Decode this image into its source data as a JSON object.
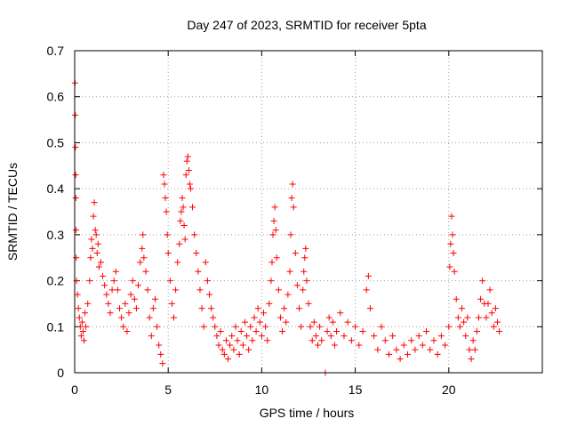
{
  "chart_data": {
    "type": "scatter",
    "title": "Day 247 of 2023, SRMTID for receiver 5pta",
    "xlabel": "GPS time / hours",
    "ylabel": "SRMTID / TECUs",
    "xlim": [
      0,
      25
    ],
    "ylim": [
      0,
      0.7
    ],
    "xticks": [
      0,
      5,
      10,
      15,
      20
    ],
    "yticks": [
      0,
      0.1,
      0.2,
      0.3,
      0.4,
      0.5,
      0.6,
      0.7
    ],
    "xtick_labels": [
      "0",
      "5",
      "10",
      "15",
      "20"
    ],
    "ytick_labels": [
      "0",
      "0.1",
      "0.2",
      "0.3",
      "0.4",
      "0.5",
      "0.6",
      "0.7"
    ],
    "grid": true,
    "marker": "+",
    "color": "#ff0000",
    "series": [
      {
        "name": "5pta",
        "points": [
          [
            0.02,
            0.63
          ],
          [
            0.03,
            0.56
          ],
          [
            0.04,
            0.49
          ],
          [
            0.05,
            0.43
          ],
          [
            0.06,
            0.38
          ],
          [
            0.07,
            0.31
          ],
          [
            0.08,
            0.25
          ],
          [
            0.1,
            0.2
          ],
          [
            0.15,
            0.17
          ],
          [
            0.2,
            0.14
          ],
          [
            0.25,
            0.12
          ],
          [
            0.3,
            0.1
          ],
          [
            0.35,
            0.08
          ],
          [
            0.4,
            0.11
          ],
          [
            0.45,
            0.09
          ],
          [
            0.5,
            0.07
          ],
          [
            0.55,
            0.13
          ],
          [
            0.6,
            0.1
          ],
          [
            0.7,
            0.15
          ],
          [
            0.8,
            0.2
          ],
          [
            0.85,
            0.25
          ],
          [
            0.9,
            0.29
          ],
          [
            0.95,
            0.27
          ],
          [
            1.0,
            0.34
          ],
          [
            1.05,
            0.37
          ],
          [
            1.1,
            0.31
          ],
          [
            1.15,
            0.3
          ],
          [
            1.2,
            0.26
          ],
          [
            1.25,
            0.28
          ],
          [
            1.3,
            0.23
          ],
          [
            1.4,
            0.24
          ],
          [
            1.5,
            0.21
          ],
          [
            1.6,
            0.19
          ],
          [
            1.7,
            0.17
          ],
          [
            1.8,
            0.15
          ],
          [
            1.9,
            0.13
          ],
          [
            2.0,
            0.18
          ],
          [
            2.1,
            0.2
          ],
          [
            2.2,
            0.22
          ],
          [
            2.3,
            0.18
          ],
          [
            2.4,
            0.14
          ],
          [
            2.5,
            0.12
          ],
          [
            2.6,
            0.1
          ],
          [
            2.7,
            0.15
          ],
          [
            2.8,
            0.09
          ],
          [
            2.9,
            0.13
          ],
          [
            3.0,
            0.17
          ],
          [
            3.1,
            0.2
          ],
          [
            3.2,
            0.16
          ],
          [
            3.3,
            0.14
          ],
          [
            3.4,
            0.19
          ],
          [
            3.5,
            0.24
          ],
          [
            3.6,
            0.27
          ],
          [
            3.65,
            0.3
          ],
          [
            3.7,
            0.25
          ],
          [
            3.8,
            0.22
          ],
          [
            3.9,
            0.18
          ],
          [
            4.0,
            0.12
          ],
          [
            4.1,
            0.08
          ],
          [
            4.2,
            0.14
          ],
          [
            4.3,
            0.16
          ],
          [
            4.4,
            0.1
          ],
          [
            4.5,
            0.06
          ],
          [
            4.6,
            0.04
          ],
          [
            4.7,
            0.02
          ],
          [
            4.75,
            0.43
          ],
          [
            4.8,
            0.41
          ],
          [
            4.85,
            0.38
          ],
          [
            4.9,
            0.35
          ],
          [
            4.95,
            0.3
          ],
          [
            5.0,
            0.26
          ],
          [
            5.1,
            0.2
          ],
          [
            5.2,
            0.15
          ],
          [
            5.3,
            0.12
          ],
          [
            5.4,
            0.18
          ],
          [
            5.5,
            0.24
          ],
          [
            5.6,
            0.28
          ],
          [
            5.65,
            0.33
          ],
          [
            5.7,
            0.35
          ],
          [
            5.75,
            0.38
          ],
          [
            5.8,
            0.36
          ],
          [
            5.85,
            0.32
          ],
          [
            5.9,
            0.29
          ],
          [
            5.95,
            0.43
          ],
          [
            6.0,
            0.46
          ],
          [
            6.05,
            0.47
          ],
          [
            6.1,
            0.44
          ],
          [
            6.15,
            0.41
          ],
          [
            6.2,
            0.4
          ],
          [
            6.3,
            0.36
          ],
          [
            6.4,
            0.3
          ],
          [
            6.5,
            0.26
          ],
          [
            6.6,
            0.22
          ],
          [
            6.7,
            0.18
          ],
          [
            6.8,
            0.14
          ],
          [
            6.9,
            0.1
          ],
          [
            7.0,
            0.24
          ],
          [
            7.1,
            0.2
          ],
          [
            7.2,
            0.17
          ],
          [
            7.3,
            0.14
          ],
          [
            7.4,
            0.12
          ],
          [
            7.5,
            0.1
          ],
          [
            7.6,
            0.08
          ],
          [
            7.7,
            0.06
          ],
          [
            7.8,
            0.09
          ],
          [
            7.9,
            0.05
          ],
          [
            8.0,
            0.04
          ],
          [
            8.1,
            0.07
          ],
          [
            8.2,
            0.03
          ],
          [
            8.3,
            0.06
          ],
          [
            8.4,
            0.08
          ],
          [
            8.5,
            0.05
          ],
          [
            8.6,
            0.1
          ],
          [
            8.7,
            0.07
          ],
          [
            8.8,
            0.04
          ],
          [
            8.9,
            0.09
          ],
          [
            9.0,
            0.06
          ],
          [
            9.1,
            0.11
          ],
          [
            9.2,
            0.08
          ],
          [
            9.3,
            0.05
          ],
          [
            9.4,
            0.1
          ],
          [
            9.5,
            0.07
          ],
          [
            9.6,
            0.12
          ],
          [
            9.7,
            0.09
          ],
          [
            9.8,
            0.14
          ],
          [
            9.9,
            0.11
          ],
          [
            10.0,
            0.08
          ],
          [
            10.1,
            0.13
          ],
          [
            10.2,
            0.1
          ],
          [
            10.3,
            0.07
          ],
          [
            10.4,
            0.15
          ],
          [
            10.5,
            0.2
          ],
          [
            10.55,
            0.24
          ],
          [
            10.6,
            0.3
          ],
          [
            10.65,
            0.33
          ],
          [
            10.7,
            0.36
          ],
          [
            10.75,
            0.31
          ],
          [
            10.8,
            0.25
          ],
          [
            10.9,
            0.18
          ],
          [
            11.0,
            0.12
          ],
          [
            11.1,
            0.09
          ],
          [
            11.2,
            0.14
          ],
          [
            11.3,
            0.11
          ],
          [
            11.4,
            0.17
          ],
          [
            11.5,
            0.22
          ],
          [
            11.55,
            0.3
          ],
          [
            11.6,
            0.38
          ],
          [
            11.65,
            0.41
          ],
          [
            11.7,
            0.36
          ],
          [
            11.8,
            0.26
          ],
          [
            11.9,
            0.19
          ],
          [
            12.0,
            0.14
          ],
          [
            12.1,
            0.1
          ],
          [
            12.2,
            0.18
          ],
          [
            12.25,
            0.22
          ],
          [
            12.3,
            0.25
          ],
          [
            12.35,
            0.27
          ],
          [
            12.4,
            0.2
          ],
          [
            12.5,
            0.15
          ],
          [
            12.6,
            0.1
          ],
          [
            12.7,
            0.07
          ],
          [
            12.8,
            0.11
          ],
          [
            12.9,
            0.08
          ],
          [
            13.0,
            0.06
          ],
          [
            13.1,
            0.1
          ],
          [
            13.2,
            0.07
          ],
          [
            13.4,
            0.0
          ],
          [
            13.5,
            0.09
          ],
          [
            13.6,
            0.12
          ],
          [
            13.7,
            0.08
          ],
          [
            13.8,
            0.11
          ],
          [
            13.9,
            0.06
          ],
          [
            14.0,
            0.09
          ],
          [
            14.2,
            0.13
          ],
          [
            14.4,
            0.08
          ],
          [
            14.6,
            0.11
          ],
          [
            14.8,
            0.07
          ],
          [
            15.0,
            0.1
          ],
          [
            15.2,
            0.06
          ],
          [
            15.4,
            0.09
          ],
          [
            15.6,
            0.18
          ],
          [
            15.7,
            0.21
          ],
          [
            15.8,
            0.14
          ],
          [
            16.0,
            0.08
          ],
          [
            16.2,
            0.05
          ],
          [
            16.4,
            0.1
          ],
          [
            16.6,
            0.07
          ],
          [
            16.8,
            0.04
          ],
          [
            17.0,
            0.08
          ],
          [
            17.2,
            0.05
          ],
          [
            17.4,
            0.03
          ],
          [
            17.6,
            0.06
          ],
          [
            17.8,
            0.04
          ],
          [
            18.0,
            0.07
          ],
          [
            18.2,
            0.05
          ],
          [
            18.4,
            0.08
          ],
          [
            18.6,
            0.06
          ],
          [
            18.8,
            0.09
          ],
          [
            19.0,
            0.05
          ],
          [
            19.2,
            0.07
          ],
          [
            19.4,
            0.04
          ],
          [
            19.6,
            0.08
          ],
          [
            19.8,
            0.06
          ],
          [
            20.0,
            0.1
          ],
          [
            20.05,
            0.23
          ],
          [
            20.1,
            0.28
          ],
          [
            20.15,
            0.34
          ],
          [
            20.2,
            0.3
          ],
          [
            20.25,
            0.26
          ],
          [
            20.3,
            0.22
          ],
          [
            20.4,
            0.16
          ],
          [
            20.5,
            0.12
          ],
          [
            20.6,
            0.1
          ],
          [
            20.7,
            0.14
          ],
          [
            20.8,
            0.11
          ],
          [
            20.9,
            0.08
          ],
          [
            21.0,
            0.12
          ],
          [
            21.1,
            0.05
          ],
          [
            21.2,
            0.03
          ],
          [
            21.3,
            0.07
          ],
          [
            21.4,
            0.05
          ],
          [
            21.5,
            0.09
          ],
          [
            21.6,
            0.12
          ],
          [
            21.7,
            0.16
          ],
          [
            21.8,
            0.2
          ],
          [
            21.9,
            0.15
          ],
          [
            22.0,
            0.12
          ],
          [
            22.1,
            0.15
          ],
          [
            22.2,
            0.18
          ],
          [
            22.3,
            0.13
          ],
          [
            22.4,
            0.1
          ],
          [
            22.5,
            0.14
          ],
          [
            22.6,
            0.11
          ],
          [
            22.7,
            0.09
          ]
        ]
      }
    ]
  }
}
